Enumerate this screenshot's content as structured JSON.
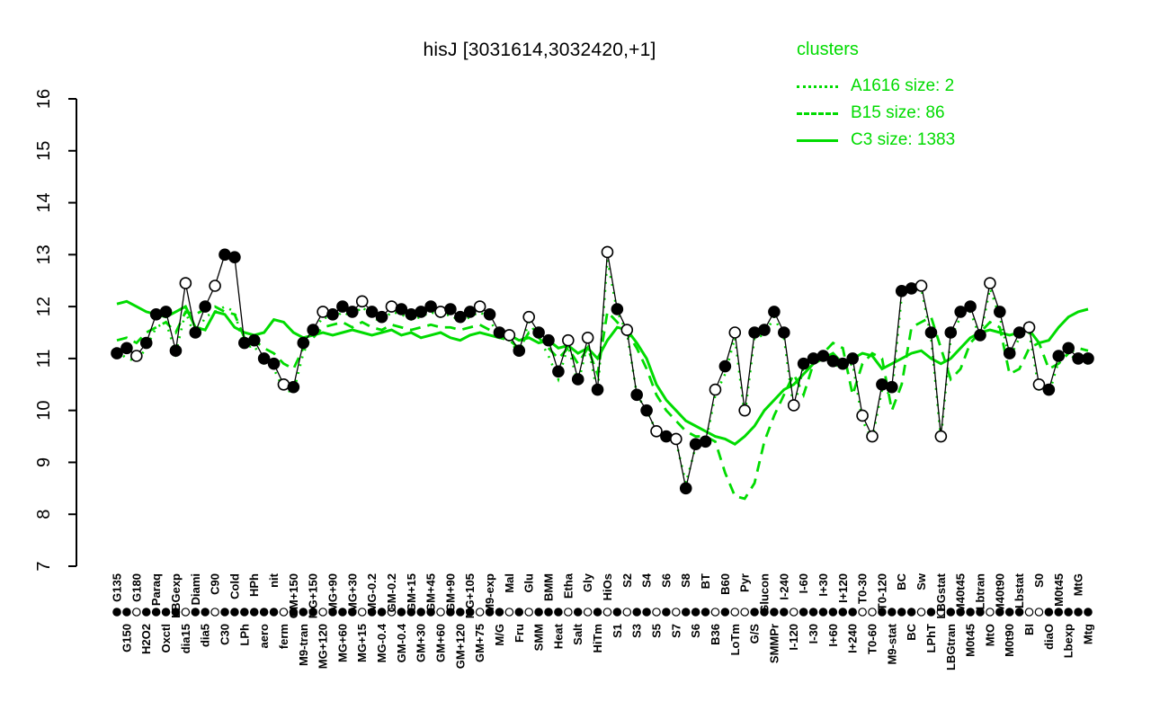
{
  "title": "hisJ [3031614,3032420,+1]",
  "legend": {
    "title": "clusters",
    "entries": [
      {
        "name": "A1616",
        "label": "A1616 size: 2",
        "style": "dotted"
      },
      {
        "name": "B15",
        "label": "B15 size: 86",
        "style": "dashed"
      },
      {
        "name": "C3",
        "label": "C3 size: 1383",
        "style": "solid"
      }
    ]
  },
  "colors": {
    "cluster_green": "#00DB00",
    "point_stroke": "#000000",
    "open_point_fill": "#FFFFFF",
    "background": "#FFFFFF"
  },
  "chart_data": {
    "type": "line",
    "title": "hisJ [3031614,3032420,+1]",
    "xlabel": "",
    "ylabel": "",
    "ylim": [
      7,
      16
    ],
    "yticks": [
      7,
      8,
      9,
      10,
      11,
      12,
      13,
      14,
      15,
      16
    ],
    "grid": false,
    "legend_position": "top-right",
    "categories": [
      "G135",
      "G150",
      "G180",
      "H2O2",
      "Paraq",
      "Oxctl",
      "LBGexp",
      "dia15",
      "Diami",
      "dia5",
      "C90",
      "C30",
      "Cold",
      "LPh",
      "HPh",
      "aero",
      "nit",
      "ferm",
      "GM+150",
      "M9-tran",
      "MG+150",
      "MG+120",
      "MG+90",
      "MG+60",
      "MG+30",
      "MG+15",
      "MG-0.2",
      "MG-0.4",
      "GM-0.2",
      "GM-0.4",
      "GM+15",
      "GM+30",
      "GM+45",
      "GM+60",
      "GM+90",
      "GM+120",
      "MG+105",
      "GM+75",
      "M9-exp",
      "M/G",
      "Mal",
      "Fru",
      "Glu",
      "SMM",
      "BMM",
      "Heat",
      "Etha",
      "Salt",
      "Gly",
      "HiTm",
      "HiOs",
      "S1",
      "S2",
      "S3",
      "S4",
      "S5",
      "S6",
      "S7",
      "S8",
      "S6",
      "BT",
      "B36",
      "B60",
      "LoTm",
      "Pyr",
      "G/S",
      "Glucon",
      "SMMPr",
      "I-240",
      "I-120",
      "I-60",
      "I-30",
      "I+30",
      "I+60",
      "I+120",
      "I+240",
      "T0-30",
      "T0-60",
      "T0-120",
      "M9-stat",
      "BC",
      "BC",
      "Sw",
      "LPhT",
      "LBGstat",
      "LBGtran",
      "M40t45",
      "M0t45",
      "Lbtran",
      "MtO",
      "M40t90",
      "M0t90",
      "Lbstat",
      "BI",
      "S0",
      "diaO",
      "M0t45",
      "Lbexp",
      "MtG",
      "Mtg"
    ],
    "series": [
      {
        "name": "hisJ",
        "role": "gene-points",
        "color": "#000000",
        "style": "points",
        "values": [
          11.1,
          11.2,
          11.05,
          11.3,
          11.85,
          11.9,
          11.15,
          12.45,
          11.5,
          12.0,
          12.4,
          13.0,
          12.95,
          11.3,
          11.35,
          11.0,
          10.9,
          10.5,
          10.45,
          11.3,
          11.55,
          11.9,
          11.85,
          12.0,
          11.9,
          12.1,
          11.9,
          11.8,
          12.0,
          11.95,
          11.85,
          11.9,
          12.0,
          11.9,
          11.95,
          11.8,
          11.9,
          12.0,
          11.85,
          11.5,
          11.45,
          11.15,
          11.8,
          11.5,
          11.35,
          10.75,
          11.35,
          10.6,
          11.4,
          10.4,
          13.05,
          11.95,
          11.55,
          10.3,
          10.0,
          9.6,
          9.5,
          9.45,
          8.5,
          9.35,
          9.4,
          10.4,
          10.85,
          11.5,
          10.0,
          11.5,
          11.55,
          11.9,
          11.5,
          10.1,
          10.9,
          11.0,
          11.05,
          10.95,
          10.9,
          11.0,
          9.9,
          9.5,
          10.5,
          10.45,
          12.3,
          12.35,
          12.4,
          11.5,
          9.5,
          11.5,
          11.9,
          12.0,
          11.45,
          12.45,
          11.9,
          11.1,
          11.5,
          11.6,
          10.5,
          10.4,
          11.05,
          11.2,
          11.0,
          11.0
        ]
      },
      {
        "name": "A1616",
        "role": "cluster-mean",
        "color": "#00DB00",
        "style": "dotted",
        "values": [
          11.15,
          11.0,
          10.95,
          11.2,
          11.6,
          11.7,
          11.1,
          11.9,
          11.4,
          11.8,
          11.9,
          12.0,
          11.9,
          11.2,
          11.25,
          10.9,
          10.8,
          10.4,
          10.35,
          11.1,
          11.5,
          11.8,
          11.75,
          11.9,
          11.8,
          12.0,
          11.8,
          11.7,
          11.9,
          11.85,
          11.75,
          11.8,
          11.9,
          11.8,
          11.85,
          11.7,
          11.8,
          11.9,
          11.75,
          11.4,
          11.35,
          11.1,
          11.7,
          11.4,
          11.05,
          10.6,
          11.25,
          10.5,
          11.3,
          10.3,
          12.9,
          11.9,
          11.5,
          10.3,
          10.0,
          9.6,
          9.5,
          9.4,
          8.6,
          9.3,
          9.35,
          10.3,
          10.7,
          11.4,
          9.9,
          11.4,
          11.45,
          11.8,
          11.4,
          10.0,
          10.85,
          10.95,
          11.0,
          10.9,
          10.8,
          10.9,
          9.8,
          9.45,
          10.4,
          10.3,
          12.2,
          12.3,
          12.35,
          11.4,
          9.45,
          11.4,
          11.8,
          11.9,
          11.4,
          12.35,
          11.8,
          11.0,
          11.4,
          11.5,
          10.4,
          10.3,
          10.95,
          11.1,
          10.95,
          10.9
        ]
      },
      {
        "name": "B15",
        "role": "cluster-mean",
        "color": "#00DB00",
        "style": "dashed",
        "values": [
          11.35,
          11.4,
          11.3,
          11.5,
          11.6,
          11.7,
          11.5,
          11.9,
          11.85,
          11.95,
          12.0,
          11.9,
          11.85,
          11.4,
          11.35,
          11.2,
          11.1,
          10.9,
          10.8,
          11.2,
          11.4,
          11.6,
          11.65,
          11.7,
          11.6,
          11.7,
          11.6,
          11.55,
          11.65,
          11.6,
          11.55,
          11.6,
          11.65,
          11.6,
          11.6,
          11.55,
          11.6,
          11.65,
          11.55,
          11.4,
          11.35,
          11.2,
          11.5,
          11.4,
          11.2,
          11.0,
          11.2,
          10.9,
          11.2,
          10.7,
          11.9,
          11.7,
          11.5,
          11.2,
          10.8,
          10.3,
          10.0,
          9.8,
          9.6,
          9.5,
          9.5,
          9.4,
          8.8,
          8.35,
          8.3,
          8.6,
          9.4,
          9.9,
          10.3,
          10.7,
          10.3,
          10.9,
          11.1,
          11.3,
          11.2,
          10.3,
          10.9,
          11.1,
          11.0,
          10.0,
          10.5,
          11.6,
          11.7,
          11.8,
          11.2,
          10.6,
          10.8,
          11.3,
          11.5,
          11.7,
          11.6,
          10.7,
          10.8,
          11.2,
          11.3,
          10.8,
          10.9,
          11.1,
          11.2,
          11.15
        ]
      },
      {
        "name": "C3",
        "role": "cluster-mean",
        "color": "#00DB00",
        "style": "solid",
        "values": [
          12.05,
          12.1,
          12.0,
          11.9,
          11.85,
          11.8,
          11.9,
          12.0,
          11.6,
          11.55,
          11.9,
          11.85,
          11.6,
          11.5,
          11.45,
          11.5,
          11.75,
          11.7,
          11.5,
          11.4,
          11.45,
          11.5,
          11.45,
          11.5,
          11.55,
          11.5,
          11.45,
          11.5,
          11.55,
          11.45,
          11.5,
          11.4,
          11.45,
          11.5,
          11.4,
          11.35,
          11.45,
          11.5,
          11.45,
          11.4,
          11.45,
          11.35,
          11.4,
          11.3,
          11.35,
          11.2,
          11.25,
          11.1,
          11.2,
          11.0,
          11.35,
          11.6,
          11.55,
          11.3,
          11.0,
          10.5,
          10.2,
          10.0,
          9.8,
          9.7,
          9.6,
          9.5,
          9.45,
          9.35,
          9.5,
          9.7,
          10.0,
          10.2,
          10.4,
          10.5,
          10.7,
          10.9,
          11.0,
          11.1,
          10.9,
          11.0,
          11.1,
          11.05,
          10.8,
          10.9,
          11.0,
          11.1,
          11.15,
          11.0,
          10.9,
          11.0,
          11.2,
          11.4,
          11.5,
          11.55,
          11.5,
          11.45,
          11.5,
          11.55,
          11.3,
          11.35,
          11.6,
          11.8,
          11.9,
          11.95
        ]
      }
    ],
    "open_point_indices": [
      2,
      7,
      10,
      17,
      21,
      25,
      28,
      33,
      37,
      40,
      42,
      46,
      48,
      50,
      52,
      55,
      57,
      61,
      63,
      64,
      69,
      76,
      77,
      82,
      84,
      89,
      93,
      94
    ]
  }
}
